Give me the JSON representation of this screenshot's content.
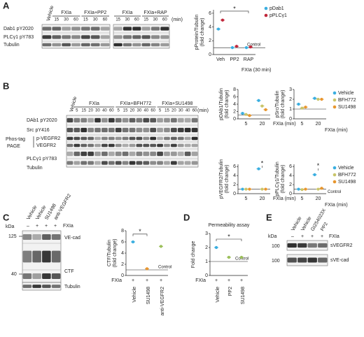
{
  "A": {
    "label": "A",
    "blot1": {
      "groups": [
        {
          "name": "Vehicle"
        },
        {
          "name": "FXIa",
          "times": [
            "15",
            "30",
            "60"
          ]
        },
        {
          "name": "FXIa+PP2",
          "times": [
            "15",
            "30",
            "60"
          ]
        }
      ],
      "unit": "(min)"
    },
    "blot2": {
      "groups": [
        {
          "name": "FXIa",
          "times": [
            "15",
            "30",
            "60"
          ]
        },
        {
          "name": "FXIa+RAP",
          "times": [
            "15",
            "30",
            "60"
          ]
        }
      ]
    },
    "rows": [
      "Dab1 pY2020",
      "PLCγ1 pY783",
      "Tubulin"
    ],
    "chart": {
      "type": "dot",
      "ylabel": [
        "pProtein/Tubulin",
        "(fold change)"
      ],
      "categories": [
        "Veh",
        "PP2",
        "RAP"
      ],
      "xlabel": "FXIa (30 min)",
      "series": [
        {
          "name": "pDab1",
          "color": "#3aaee0",
          "values": [
            3.7,
            1.0,
            1.0
          ]
        },
        {
          "name": "pPLCγ1",
          "color": "#c0263a",
          "values": [
            5.0,
            1.2,
            1.1
          ]
        }
      ],
      "ylim": [
        0,
        6.5
      ],
      "yticks": [
        0,
        2,
        4,
        6
      ],
      "control": 1,
      "control_label": "Control",
      "star": "*"
    }
  },
  "B": {
    "label": "B",
    "groups": [
      {
        "name": "Vehicle"
      },
      {
        "name": "FXIa",
        "times": [
          "5",
          "15",
          "20",
          "30",
          "40",
          "60"
        ]
      },
      {
        "name": "FXIa+BFH772",
        "times": [
          "5",
          "15",
          "20",
          "30",
          "40",
          "60"
        ]
      },
      {
        "name": "FXIa+SU1498",
        "times": [
          "5",
          "15",
          "20",
          "30",
          "40",
          "60"
        ]
      }
    ],
    "unit": "(min)",
    "rows": [
      "DAb1 pY2020",
      "Src pY416",
      "p-VEGFR2",
      "VEGFR2",
      "PLCγ1 pY783",
      "Tubulin"
    ],
    "phos": [
      "Phos-tag",
      "PAGE"
    ],
    "charts": [
      {
        "type": "dot",
        "ylabel": [
          "pDAb1/Tubulin",
          "(fold change)"
        ],
        "categories": [
          "5",
          "20"
        ],
        "xlabel": "FXIa (min)",
        "ylim": [
          0,
          8
        ],
        "yticks": [
          0,
          2,
          4,
          6,
          8
        ],
        "control": 1,
        "series": [
          {
            "name": "Vehicle",
            "color": "#3aaee0",
            "values": [
              1.5,
              5.0
            ]
          },
          {
            "name": "BFH772",
            "color": "#c9c56a",
            "values": [
              1.2,
              3.5
            ]
          },
          {
            "name": "SU1498",
            "color": "#e8962e",
            "values": [
              0.9,
              2.5
            ]
          }
        ]
      },
      {
        "type": "dot",
        "ylabel": [
          "pSrc/Tubulin",
          "(fold change)"
        ],
        "categories": [
          "5",
          "20"
        ],
        "xlabel": "FXIa (min)",
        "ylim": [
          0,
          3
        ],
        "yticks": [
          0,
          1,
          2,
          3
        ],
        "control": 1,
        "series": [
          {
            "name": "Vehicle",
            "color": "#3aaee0",
            "values": [
              1.5,
              2.1
            ]
          },
          {
            "name": "BFH772",
            "color": "#c9c56a",
            "values": [
              1.1,
              2.0
            ]
          },
          {
            "name": "SU1498",
            "color": "#e8962e",
            "values": [
              1.2,
              2.0
            ]
          }
        ]
      },
      {
        "type": "dot",
        "ylabel": [
          "pVEGFR2/Tubulin",
          "(fold change)"
        ],
        "categories": [
          "5",
          "20"
        ],
        "xlabel": "FXIa (min)",
        "ylim": [
          0,
          6.5
        ],
        "yticks": [
          0,
          2,
          4,
          6
        ],
        "control": 1,
        "star": "*",
        "series": [
          {
            "name": "Vehicle",
            "color": "#3aaee0",
            "values": [
              1.0,
              5.5
            ]
          },
          {
            "name": "BFH772",
            "color": "#c9c56a",
            "values": [
              1.0,
              1.0
            ]
          },
          {
            "name": "SU1498",
            "color": "#e8962e",
            "values": [
              1.0,
              1.0
            ]
          }
        ]
      },
      {
        "type": "dot",
        "ylabel": [
          "pPLCγ1/Tubulin",
          "(fold change)"
        ],
        "categories": [
          "5",
          "20"
        ],
        "xlabel": "FXIa (min)",
        "ylim": [
          0,
          6.5
        ],
        "yticks": [
          0,
          2,
          4,
          6
        ],
        "control": 1,
        "control_label": "Control",
        "star": "*",
        "series": [
          {
            "name": "Vehicle",
            "color": "#3aaee0",
            "values": [
              1.0,
              4.2
            ]
          },
          {
            "name": "BFH772",
            "color": "#c9c56a",
            "values": [
              0.9,
              1.0
            ]
          },
          {
            "name": "SU1498",
            "color": "#e8962e",
            "values": [
              1.0,
              1.2
            ]
          }
        ]
      }
    ]
  },
  "C": {
    "label": "C",
    "kda": "kDa",
    "markers": [
      "125",
      "40"
    ],
    "columns": [
      "Vehicle",
      "Vehicle",
      "SU1498",
      "anti-VEGFR2"
    ],
    "signs": [
      "–",
      "+",
      "+",
      "+"
    ],
    "treatment": "FXIa",
    "rows": [
      "VE-cad",
      "CTF",
      "Tubulin"
    ],
    "chart": {
      "type": "dot",
      "ylabel": [
        "CTF/Tubulin",
        "(fold change)"
      ],
      "categories": [
        "Vehicle",
        "SU1498",
        "anti-VEGFR2"
      ],
      "xrow_label": "FXIa",
      "xrow": [
        "+",
        "+",
        "+"
      ],
      "values": [
        6.0,
        1.2,
        5.2
      ],
      "colors": [
        "#3aaee0",
        "#e8962e",
        "#9cbf5a"
      ],
      "ylim": [
        0,
        8
      ],
      "yticks": [
        0,
        2,
        4,
        6,
        8
      ],
      "control": 1,
      "control_label": "Control",
      "star": "*"
    }
  },
  "D": {
    "label": "D",
    "chart": {
      "type": "dot",
      "title": "Permeability assay",
      "ylabel": [
        "Fold change"
      ],
      "categories": [
        "Vehicle",
        "PP2",
        "SU1498"
      ],
      "xrow_label": "FXIa",
      "xrow": [
        "+",
        "+",
        "+"
      ],
      "values": [
        2.0,
        1.3,
        1.3
      ],
      "colors": [
        "#3aaee0",
        "#9cbf5a",
        "#9cbf5a"
      ],
      "ylim": [
        0,
        3
      ],
      "yticks": [
        0,
        1,
        2,
        3
      ],
      "control": 1,
      "control_label": "Control",
      "star": "*"
    }
  },
  "E": {
    "label": "E",
    "kda": "kDa",
    "markers": [
      "100",
      "100"
    ],
    "columns": [
      "Vehicle",
      "Vehicle",
      "GI254023X",
      "PP2"
    ],
    "signs": [
      "–",
      "+",
      "+",
      "+"
    ],
    "treatment": "FXIa",
    "rows": [
      "sVEGFR2",
      "sVE-cad"
    ]
  }
}
